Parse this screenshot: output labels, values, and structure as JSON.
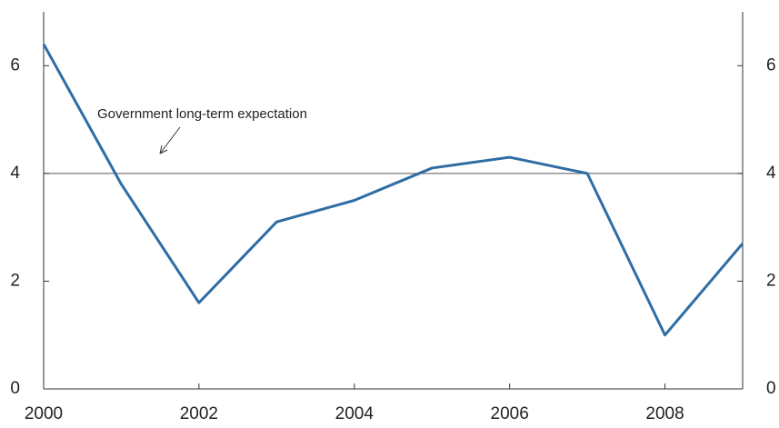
{
  "chart_data": {
    "type": "line",
    "annotation": "Government long-term expectation",
    "reference_line": 4,
    "x": [
      2000,
      2001,
      2002,
      2003,
      2004,
      2005,
      2006,
      2007,
      2008,
      2009
    ],
    "series": [
      {
        "color": "#2e6da4",
        "values": [
          6.4,
          3.8,
          1.6,
          3.1,
          3.5,
          4.1,
          4.3,
          4.0,
          1.0,
          2.7
        ]
      }
    ],
    "xlim": [
      2000,
      2009
    ],
    "xticks": [
      2000,
      2002,
      2004,
      2006,
      2008
    ],
    "ylim": [
      0,
      7
    ],
    "yticks": [
      0,
      2,
      4,
      6
    ],
    "y2lim": [
      0,
      7
    ],
    "y2ticks": [
      0,
      2,
      4,
      6
    ]
  }
}
